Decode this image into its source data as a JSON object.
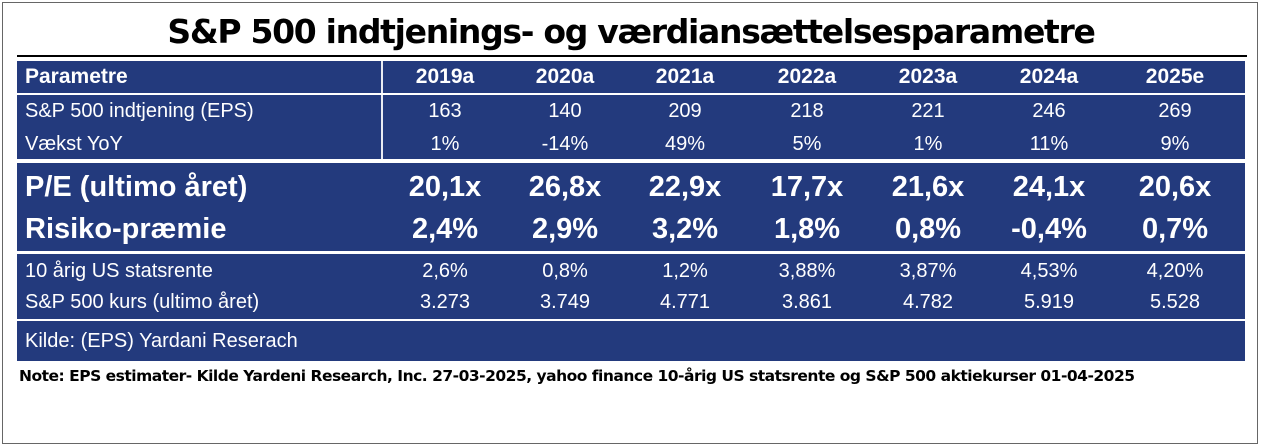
{
  "title": "S&P 500 indtjenings- og værdiansættelsesparametre",
  "table": {
    "header": {
      "label": "Parametre",
      "years": [
        "2019a",
        "2020a",
        "2021a",
        "2022a",
        "2023a",
        "2024a",
        "2025e"
      ]
    },
    "rows": [
      {
        "label": "S&P 500 indtjening (EPS)",
        "values": [
          "163",
          "140",
          "209",
          "218",
          "221",
          "246",
          "269"
        ]
      },
      {
        "label": "Vækst YoY",
        "values": [
          "1%",
          "-14%",
          "49%",
          "5%",
          "1%",
          "11%",
          "9%"
        ]
      },
      {
        "label": "P/E (ultimo året)",
        "values": [
          "20,1x",
          "26,8x",
          "22,9x",
          "17,7x",
          "21,6x",
          "24,1x",
          "20,6x"
        ]
      },
      {
        "label": "Risiko-præmie",
        "values": [
          "2,4%",
          "2,9%",
          "3,2%",
          "1,8%",
          "0,8%",
          "-0,4%",
          "0,7%"
        ]
      },
      {
        "label": "10 årig US statsrente",
        "values": [
          "2,6%",
          "0,8%",
          "1,2%",
          "3,88%",
          "3,87%",
          "4,53%",
          "4,20%"
        ]
      },
      {
        "label": "S&P 500 kurs (ultimo året)",
        "values": [
          "3.273",
          "3.749",
          "4.771",
          "3.861",
          "4.782",
          "5.919",
          "5.528"
        ]
      }
    ]
  },
  "source": "Kilde: (EPS) Yardani Reserach",
  "note": "Note: EPS estimater- Kilde Yardeni Research, Inc. 27-03-2025, yahoo finance 10-årig US statsrente og S&P 500 aktiekurser 01-04-2025",
  "colors": {
    "panel": "#233a7d",
    "text": "#ffffff"
  }
}
